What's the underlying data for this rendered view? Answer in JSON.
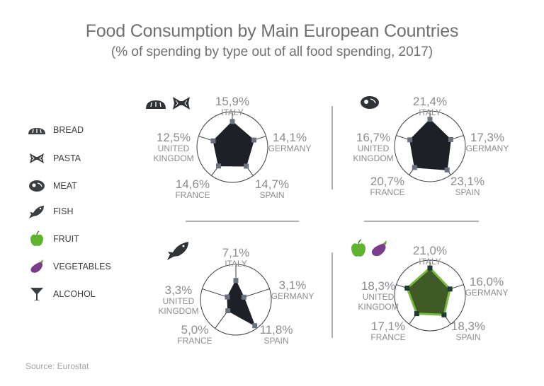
{
  "title": "Food Consumption by Main European Countries",
  "subtitle": "(% of spending by type out of all food spending, 2017)",
  "source": "Source: Eurostat",
  "legend": [
    {
      "label": "BREAD",
      "icon": "bread-icon"
    },
    {
      "label": "PASTA",
      "icon": "pasta-icon"
    },
    {
      "label": "MEAT",
      "icon": "meat-icon"
    },
    {
      "label": "FISH",
      "icon": "fish-icon"
    },
    {
      "label": "FRUIT",
      "icon": "apple-icon"
    },
    {
      "label": "VEGETABLES",
      "icon": "eggplant-icon"
    },
    {
      "label": "ALCOHOL",
      "icon": "cocktail-glass-icon"
    }
  ],
  "colors": {
    "dark_fill": "#1d2127",
    "dark_marker": "#6b7380",
    "green_fill": "#3f5a26",
    "green_stroke": "#79b941",
    "green_marker": "#1f3b2f",
    "value_text": "#8a8d91"
  },
  "chart_data": [
    {
      "type": "radar",
      "name": "bread-pasta",
      "icons": [
        "bread-icon",
        "pasta-icon"
      ],
      "axes": [
        {
          "value": "15,9%",
          "lines": [
            "ITALY"
          ]
        },
        {
          "value": "14,1%",
          "lines": [
            "GERMANY"
          ]
        },
        {
          "value": "14,7%",
          "lines": [
            "SPAIN"
          ]
        },
        {
          "value": "14,6%",
          "lines": [
            "FRANCE"
          ]
        },
        {
          "value": "12,5%",
          "lines": [
            "UNITED",
            "KINGDOM"
          ]
        }
      ],
      "values": [
        15.9,
        14.1,
        14.7,
        14.6,
        12.5
      ],
      "max": 22,
      "style": "dark"
    },
    {
      "type": "radar",
      "name": "meat",
      "icons": [
        "meat-icon"
      ],
      "axes": [
        {
          "value": "21,4%",
          "lines": [
            "ITALY"
          ]
        },
        {
          "value": "17,3%",
          "lines": [
            "GERMANY"
          ]
        },
        {
          "value": "23,1%",
          "lines": [
            "SPAIN"
          ]
        },
        {
          "value": "20,7%",
          "lines": [
            "FRANCE"
          ]
        },
        {
          "value": "16,7%",
          "lines": [
            "UNITED",
            "KINGDOM"
          ]
        }
      ],
      "values": [
        21.4,
        17.3,
        23.1,
        20.7,
        16.7
      ],
      "max": 28,
      "style": "dark"
    },
    {
      "type": "radar",
      "name": "fish",
      "icons": [
        "fish-icon"
      ],
      "axes": [
        {
          "value": "7,1%",
          "lines": [
            "ITALY"
          ]
        },
        {
          "value": "3,1%",
          "lines": [
            "GERMANY"
          ]
        },
        {
          "value": "11,8%",
          "lines": [
            "SPAIN"
          ]
        },
        {
          "value": "5,0%",
          "lines": [
            "FRANCE"
          ]
        },
        {
          "value": "3,3%",
          "lines": [
            "UNITED",
            "KINGDOM"
          ]
        }
      ],
      "values": [
        7.1,
        3.1,
        11.8,
        5.0,
        3.3
      ],
      "max": 13,
      "style": "dark"
    },
    {
      "type": "radar",
      "name": "fruit-vegetables",
      "icons": [
        "apple-icon",
        "eggplant-icon"
      ],
      "axes": [
        {
          "value": "21,0%",
          "lines": [
            "ITALY"
          ]
        },
        {
          "value": "16,0%",
          "lines": [
            "GERMANY"
          ]
        },
        {
          "value": "18,3%",
          "lines": [
            "SPAIN"
          ]
        },
        {
          "value": "17,1%",
          "lines": [
            "FRANCE"
          ]
        },
        {
          "value": "18,3%",
          "lines": [
            "UNITED",
            "KINGDOM"
          ]
        }
      ],
      "values": [
        21.0,
        16.0,
        18.3,
        17.1,
        18.3
      ],
      "max": 27,
      "style": "green"
    }
  ]
}
